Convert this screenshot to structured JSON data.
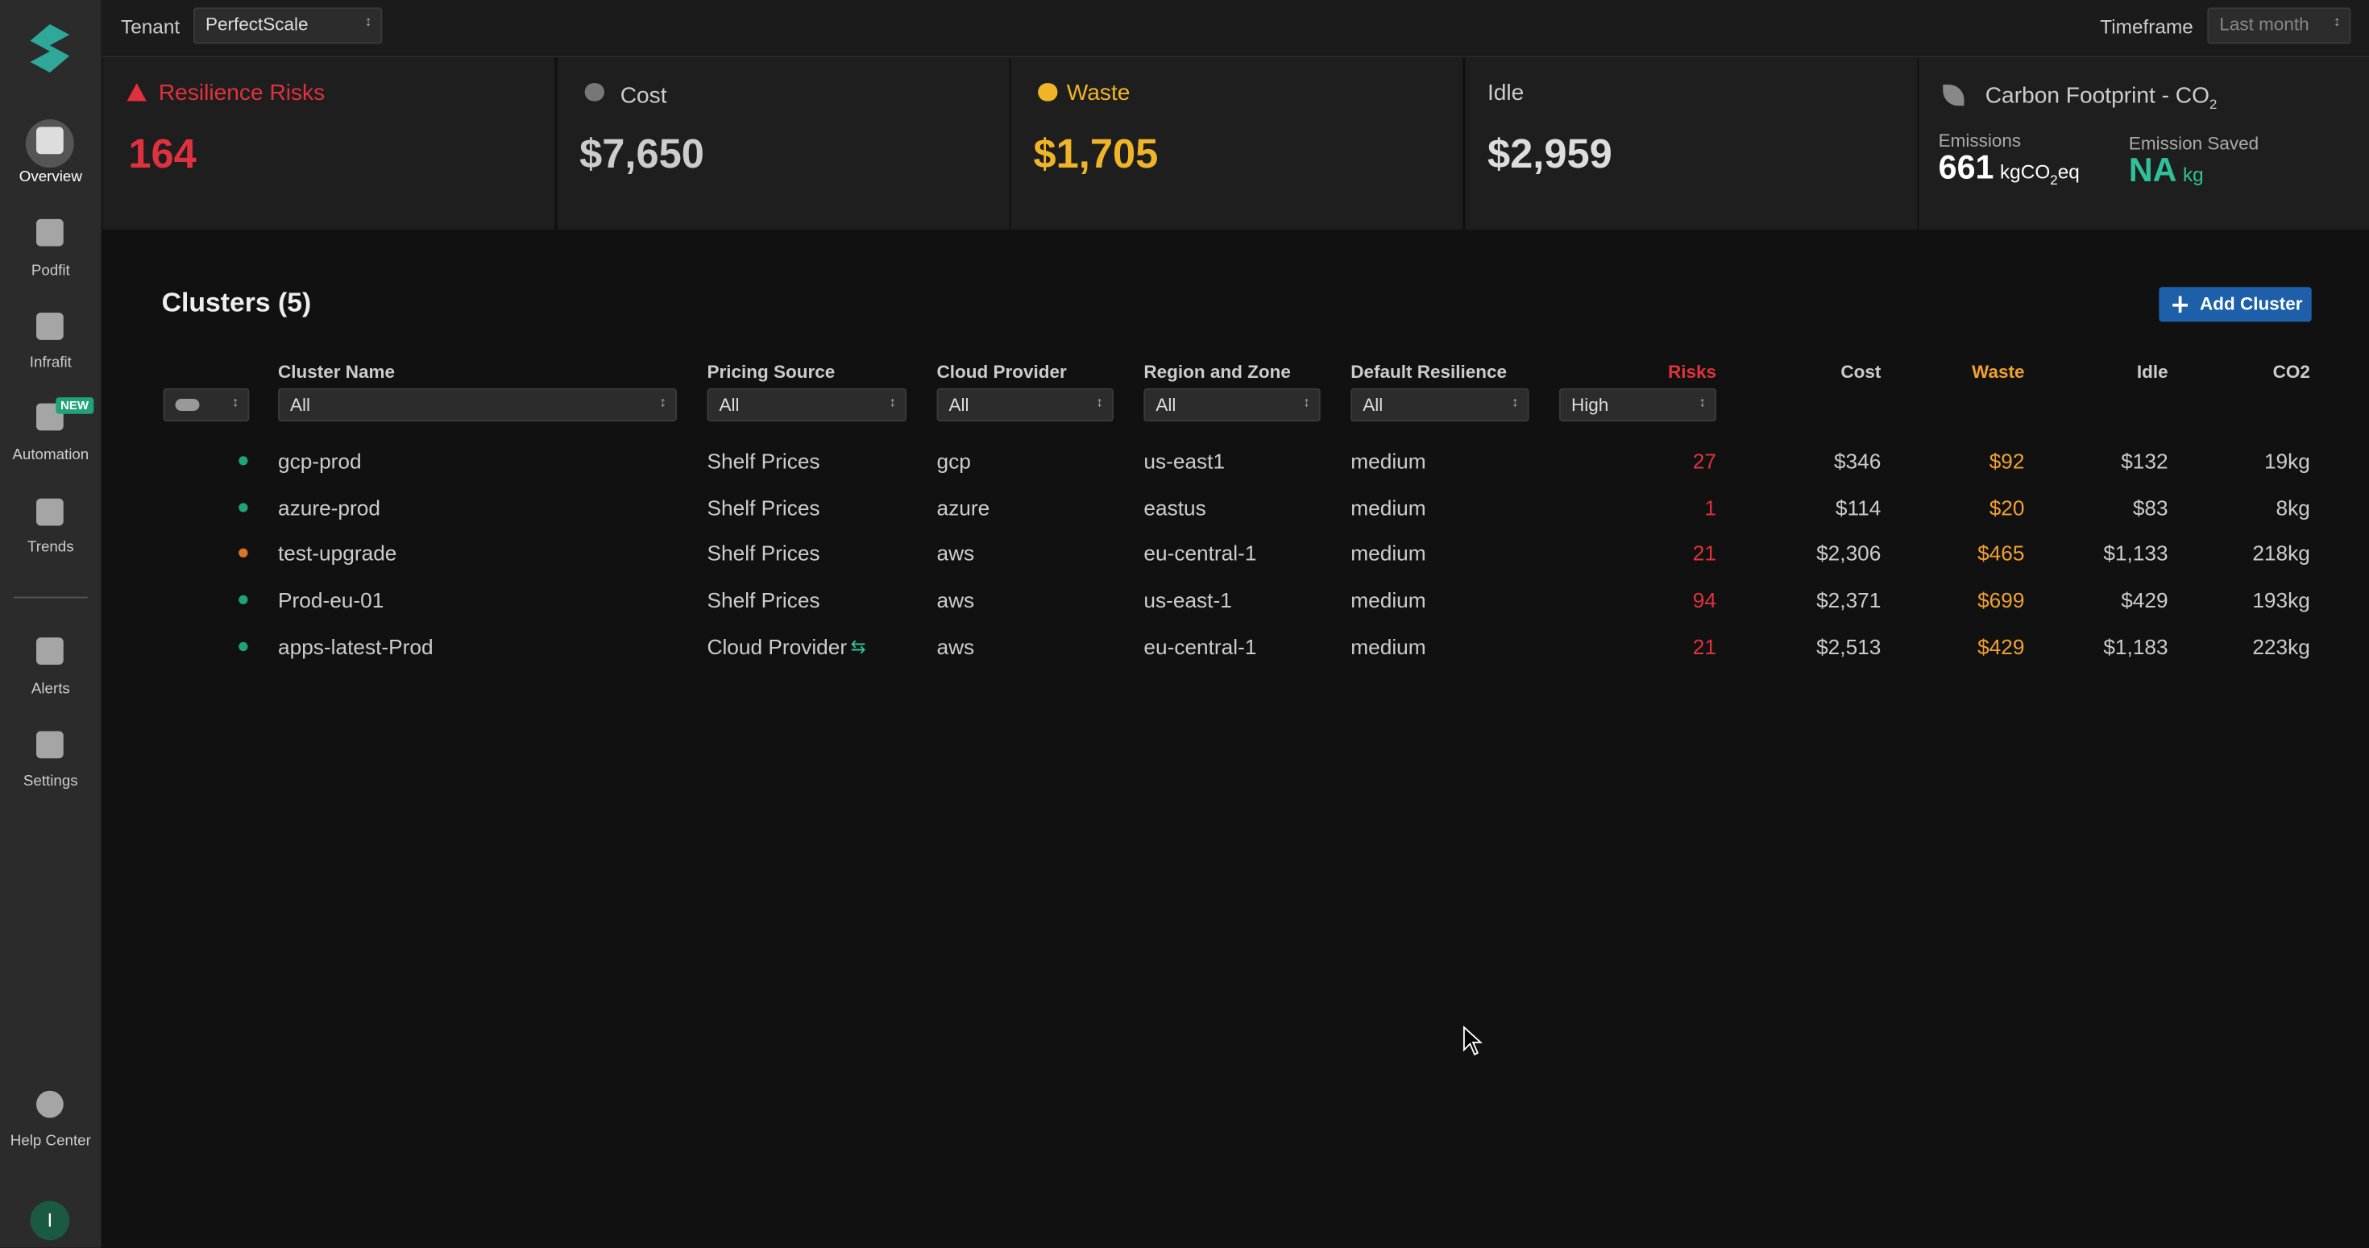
{
  "sidebar": {
    "items": [
      "Overview",
      "Podfit",
      "Infrafit",
      "Automation",
      "Trends",
      "Alerts",
      "Settings",
      "Help Center"
    ],
    "new_badge": "NEW",
    "avatar": "I"
  },
  "header": {
    "tenant_label": "Tenant",
    "tenant_value": "PerfectScale",
    "timeframe_label": "Timeframe",
    "timeframe_value": "Last month"
  },
  "summary": {
    "resilience": {
      "title": "Resilience Risks",
      "value": "164"
    },
    "cost": {
      "title": "Cost",
      "value": "$7,650"
    },
    "waste": {
      "title": "Waste",
      "value": "$1,705"
    },
    "idle": {
      "title": "Idle",
      "value": "$2,959"
    },
    "carbon": {
      "title": "Carbon Footprint - CO",
      "title_sub": "2",
      "emissions_label": "Emissions",
      "emissions_value": "661",
      "emissions_unit": "kgCO",
      "emissions_unit_sub": "2",
      "emissions_unit_suffix": "eq",
      "saved_label": "Emission Saved",
      "saved_value": "NA",
      "saved_unit": "kg"
    }
  },
  "clusters": {
    "title": "Clusters (5)",
    "add_button": "Add Cluster",
    "columns": [
      "Cluster Name",
      "Pricing Source",
      "Cloud Provider",
      "Region and Zone",
      "Default Resilience",
      "Risks",
      "Cost",
      "Waste",
      "Idle",
      "CO2"
    ],
    "filters": [
      "All",
      "All",
      "All",
      "All",
      "All",
      "High"
    ],
    "rows": [
      {
        "dot_color": "#1fa37a",
        "cells": [
          "gcp-prod",
          "Shelf Prices",
          "gcp",
          "us-east1",
          "medium",
          "27",
          "$346",
          "$92",
          "$132",
          "19kg"
        ]
      },
      {
        "dot_color": "#1fa37a",
        "cells": [
          "azure-prod",
          "Shelf Prices",
          "azure",
          "eastus",
          "medium",
          "1",
          "$114",
          "$20",
          "$83",
          "8kg"
        ]
      },
      {
        "dot_color": "#d9762b",
        "cells": [
          "test-upgrade",
          "Shelf Prices",
          "aws",
          "eu-central-1",
          "medium",
          "21",
          "$2,306",
          "$465",
          "$1,133",
          "218kg"
        ]
      },
      {
        "dot_color": "#1fa37a",
        "cells": [
          "Prod-eu-01",
          "Shelf Prices",
          "aws",
          "us-east-1",
          "medium",
          "94",
          "$2,371",
          "$699",
          "$429",
          "193kg"
        ]
      },
      {
        "dot_color": "#1fa37a",
        "cells": [
          "apps-latest-Prod",
          "Cloud Provider",
          "aws",
          "eu-central-1",
          "medium",
          "21",
          "$2,513",
          "$429",
          "$1,183",
          "223kg"
        ]
      }
    ]
  }
}
